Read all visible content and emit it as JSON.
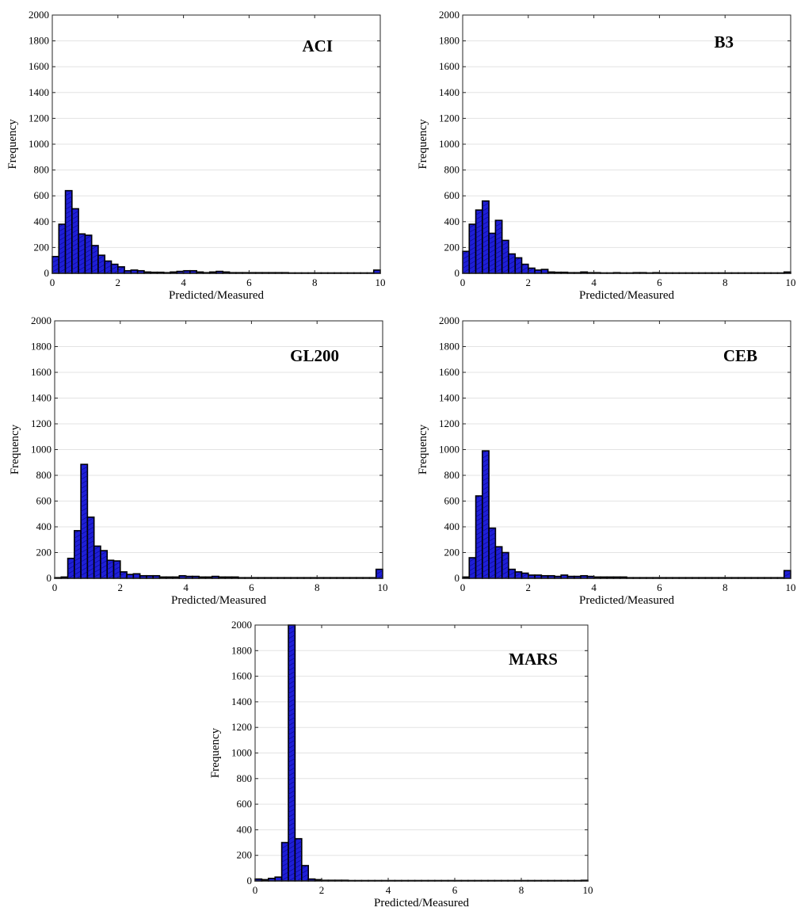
{
  "colors": {
    "bar_fill": "#1f1fd6",
    "bar_stroke": "#000000",
    "grid": "#e3e3e3",
    "hatch": "#000080"
  },
  "chart_data": [
    {
      "type": "bar",
      "title": "ACI",
      "xlabel": "Predicted/Measured",
      "ylabel": "Frequency",
      "xlim": [
        0,
        10
      ],
      "ylim": [
        0,
        2000
      ],
      "xticks": [
        0,
        2,
        4,
        6,
        8,
        10
      ],
      "yticks": [
        0,
        200,
        400,
        600,
        800,
        1000,
        1200,
        1400,
        1600,
        1800,
        2000
      ],
      "grid": "horizontal",
      "bin_width": 0.2,
      "bin_starts": [
        0.0,
        0.2,
        0.4,
        0.6,
        0.8,
        1.0,
        1.2,
        1.4,
        1.6,
        1.8,
        2.0,
        2.2,
        2.4,
        2.6,
        2.8,
        3.0,
        3.2,
        3.4,
        3.6,
        3.8,
        4.0,
        4.2,
        4.4,
        4.6,
        4.8,
        5.0,
        5.2,
        5.4,
        5.6,
        5.8,
        6.0,
        6.2,
        6.4,
        6.6,
        6.8,
        7.0,
        7.2,
        7.4,
        7.6,
        7.8,
        8.0,
        8.2,
        8.4,
        8.6,
        8.8,
        9.0,
        9.2,
        9.4,
        9.6,
        9.8
      ],
      "values": [
        130,
        380,
        640,
        500,
        305,
        295,
        215,
        140,
        95,
        70,
        50,
        20,
        25,
        20,
        10,
        8,
        8,
        5,
        10,
        15,
        20,
        20,
        10,
        5,
        10,
        15,
        10,
        5,
        5,
        5,
        5,
        5,
        5,
        5,
        5,
        5,
        3,
        3,
        3,
        3,
        3,
        3,
        3,
        3,
        3,
        3,
        3,
        3,
        3,
        25
      ]
    },
    {
      "type": "bar",
      "title": "B3",
      "xlabel": "Predicted/Measured",
      "ylabel": "Frequency",
      "xlim": [
        0,
        10
      ],
      "ylim": [
        0,
        2000
      ],
      "xticks": [
        0,
        2,
        4,
        6,
        8,
        10
      ],
      "yticks": [
        0,
        200,
        400,
        600,
        800,
        1000,
        1200,
        1400,
        1600,
        1800,
        2000
      ],
      "grid": "horizontal",
      "bin_width": 0.2,
      "bin_starts": [
        0.0,
        0.2,
        0.4,
        0.6,
        0.8,
        1.0,
        1.2,
        1.4,
        1.6,
        1.8,
        2.0,
        2.2,
        2.4,
        2.6,
        2.8,
        3.0,
        3.2,
        3.4,
        3.6,
        3.8,
        4.0,
        4.2,
        4.4,
        4.6,
        4.8,
        5.0,
        5.2,
        5.4,
        5.6,
        5.8,
        6.0,
        6.2,
        6.4,
        6.6,
        6.8,
        7.0,
        7.2,
        7.4,
        7.6,
        7.8,
        8.0,
        8.2,
        8.4,
        8.6,
        8.8,
        9.0,
        9.2,
        9.4,
        9.6,
        9.8
      ],
      "values": [
        170,
        380,
        490,
        560,
        310,
        410,
        255,
        150,
        120,
        70,
        40,
        25,
        30,
        10,
        8,
        8,
        5,
        5,
        10,
        5,
        5,
        3,
        3,
        5,
        3,
        3,
        5,
        5,
        3,
        5,
        3,
        3,
        3,
        3,
        3,
        3,
        3,
        3,
        3,
        3,
        3,
        3,
        3,
        3,
        3,
        3,
        3,
        3,
        3,
        10
      ]
    },
    {
      "type": "bar",
      "title": "GL200",
      "xlabel": "Predicted/Measured",
      "ylabel": "Frequency",
      "xlim": [
        0,
        10
      ],
      "ylim": [
        0,
        2000
      ],
      "xticks": [
        0,
        2,
        4,
        6,
        8,
        10
      ],
      "yticks": [
        0,
        200,
        400,
        600,
        800,
        1000,
        1200,
        1400,
        1600,
        1800,
        2000
      ],
      "grid": "horizontal",
      "bin_width": 0.2,
      "bin_starts": [
        0.0,
        0.2,
        0.4,
        0.6,
        0.8,
        1.0,
        1.2,
        1.4,
        1.6,
        1.8,
        2.0,
        2.2,
        2.4,
        2.6,
        2.8,
        3.0,
        3.2,
        3.4,
        3.6,
        3.8,
        4.0,
        4.2,
        4.4,
        4.6,
        4.8,
        5.0,
        5.2,
        5.4,
        5.6,
        5.8,
        6.0,
        6.2,
        6.4,
        6.6,
        6.8,
        7.0,
        7.2,
        7.4,
        7.6,
        7.8,
        8.0,
        8.2,
        8.4,
        8.6,
        8.8,
        9.0,
        9.2,
        9.4,
        9.6,
        9.8
      ],
      "values": [
        5,
        10,
        155,
        370,
        885,
        475,
        250,
        215,
        140,
        135,
        50,
        30,
        35,
        20,
        20,
        20,
        10,
        10,
        10,
        20,
        15,
        15,
        10,
        10,
        15,
        10,
        10,
        10,
        5,
        5,
        5,
        5,
        5,
        5,
        5,
        5,
        5,
        5,
        5,
        5,
        5,
        5,
        5,
        5,
        5,
        5,
        5,
        5,
        5,
        70
      ]
    },
    {
      "type": "bar",
      "title": "CEB",
      "xlabel": "Predicted/Measured",
      "ylabel": "Frequency",
      "xlim": [
        0,
        10
      ],
      "ylim": [
        0,
        2000
      ],
      "xticks": [
        0,
        2,
        4,
        6,
        8,
        10
      ],
      "yticks": [
        0,
        200,
        400,
        600,
        800,
        1000,
        1200,
        1400,
        1600,
        1800,
        2000
      ],
      "grid": "horizontal",
      "bin_width": 0.2,
      "bin_starts": [
        0.0,
        0.2,
        0.4,
        0.6,
        0.8,
        1.0,
        1.2,
        1.4,
        1.6,
        1.8,
        2.0,
        2.2,
        2.4,
        2.6,
        2.8,
        3.0,
        3.2,
        3.4,
        3.6,
        3.8,
        4.0,
        4.2,
        4.4,
        4.6,
        4.8,
        5.0,
        5.2,
        5.4,
        5.6,
        5.8,
        6.0,
        6.2,
        6.4,
        6.6,
        6.8,
        7.0,
        7.2,
        7.4,
        7.6,
        7.8,
        8.0,
        8.2,
        8.4,
        8.6,
        8.8,
        9.0,
        9.2,
        9.4,
        9.6,
        9.8
      ],
      "values": [
        10,
        160,
        640,
        990,
        390,
        245,
        200,
        70,
        50,
        40,
        25,
        25,
        20,
        20,
        15,
        25,
        15,
        15,
        20,
        15,
        10,
        10,
        10,
        10,
        10,
        5,
        5,
        5,
        5,
        5,
        5,
        5,
        5,
        5,
        5,
        5,
        5,
        5,
        5,
        5,
        5,
        5,
        5,
        5,
        5,
        5,
        5,
        5,
        5,
        60
      ]
    },
    {
      "type": "bar",
      "title": "MARS",
      "xlabel": "Predicted/Measured",
      "ylabel": "Frequency",
      "xlim": [
        0,
        10
      ],
      "ylim": [
        0,
        2000
      ],
      "xticks": [
        0,
        2,
        4,
        6,
        8,
        10
      ],
      "yticks": [
        0,
        200,
        400,
        600,
        800,
        1000,
        1200,
        1400,
        1600,
        1800,
        2000
      ],
      "grid": "horizontal",
      "bin_width": 0.2,
      "bin_starts": [
        0.0,
        0.2,
        0.4,
        0.6,
        0.8,
        1.0,
        1.2,
        1.4,
        1.6,
        1.8,
        2.0,
        2.2,
        2.4,
        2.6,
        2.8,
        3.0,
        3.2,
        3.4,
        3.6,
        3.8,
        4.0,
        4.2,
        4.4,
        4.6,
        4.8,
        5.0,
        5.2,
        5.4,
        5.6,
        5.8,
        6.0,
        6.2,
        6.4,
        6.6,
        6.8,
        7.0,
        7.2,
        7.4,
        7.6,
        7.8,
        8.0,
        8.2,
        8.4,
        8.6,
        8.8,
        9.0,
        9.2,
        9.4,
        9.6,
        9.8
      ],
      "values": [
        15,
        10,
        20,
        30,
        300,
        2000,
        330,
        120,
        15,
        10,
        5,
        5,
        5,
        5,
        3,
        3,
        3,
        3,
        3,
        3,
        3,
        3,
        3,
        3,
        3,
        3,
        3,
        3,
        3,
        3,
        3,
        3,
        3,
        3,
        3,
        3,
        3,
        3,
        3,
        3,
        3,
        3,
        3,
        3,
        3,
        3,
        3,
        3,
        3,
        5
      ]
    }
  ]
}
